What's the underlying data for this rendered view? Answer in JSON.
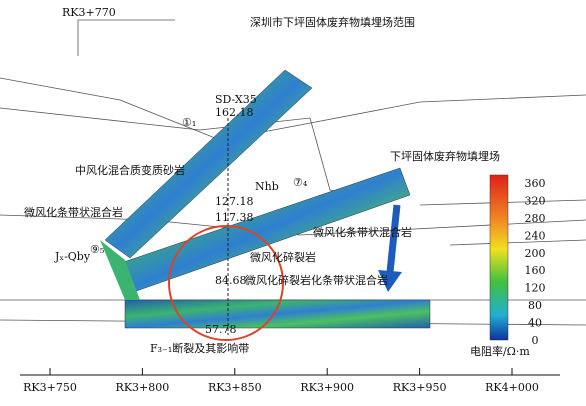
{
  "title": "深圳市下坪固体废弃物填埋场范围",
  "top_label": "RK3+770",
  "borehole": {
    "name": "SD-X35",
    "elevations": [
      "162.18",
      "127.18",
      "117.38",
      "84.68",
      "57.78"
    ]
  },
  "labels": [
    "①₁",
    "中风化混合质变质砂岩",
    "Nhb",
    "⑦₄",
    "下坪固体废弃物填埋场",
    "微风化条带状混合岩",
    "⑨₅",
    "Jₓ-Qby",
    "微风化条带状混合岩",
    "微风化碎裂岩",
    "微风化碎裂岩化条带状混合岩",
    "F₃₋₁断裂及其影响带"
  ],
  "chainage_ticks": [
    "RK3+750",
    "RK3+800",
    "RK3+850",
    "RK3+900",
    "RK3+950",
    "RK4+000"
  ],
  "colorbar": {
    "ticks": [
      360,
      320,
      280,
      240,
      200,
      160,
      120,
      80,
      40,
      0
    ],
    "unit": "电阻率/Ω·m"
  }
}
